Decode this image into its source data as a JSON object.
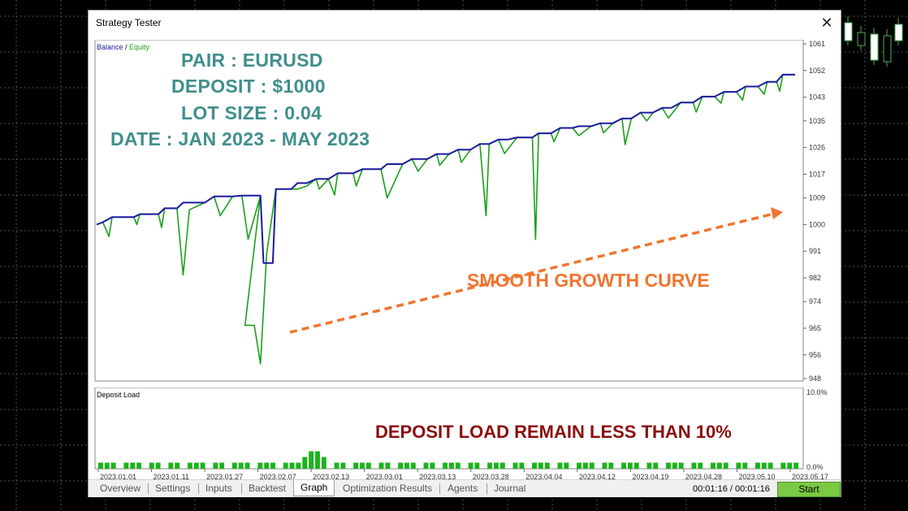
{
  "window": {
    "title": "Strategy Tester"
  },
  "main_chart": {
    "legend_balance": "Balance",
    "legend_sep": " / ",
    "legend_equity": "Equity",
    "y_ticks": [
      "1061",
      "1052",
      "1043",
      "1035",
      "1026",
      "1017",
      "1009",
      "1000",
      "991",
      "982",
      "974",
      "965",
      "956",
      "948"
    ]
  },
  "load_chart": {
    "label": "Deposit Load",
    "y_top": "10.0%",
    "y_bottom": "0.0%"
  },
  "x_ticks": [
    "2023.01.01",
    "2023.01.11",
    "2023.01.27",
    "2023.02.07",
    "2023.02.13",
    "2023.03.01",
    "2023.03.13",
    "2023.03.28",
    "2023.04.04",
    "2023.04.12",
    "2023.04.19",
    "2023.04.28",
    "2023.05.10",
    "2023.05.17"
  ],
  "annotations": {
    "pair": "PAIR : EURUSD",
    "deposit": "DEPOSIT : $1000",
    "lot": "LOT SIZE : 0.04",
    "date": "DATE : JAN 2023 - MAY 2023",
    "smooth": "SMOOTH GROWTH CURVE",
    "load": "DEPOSIT LOAD REMAIN LESS THAN 10%"
  },
  "tabs": [
    "Overview",
    "Settings",
    "Inputs",
    "Backtest",
    "Graph",
    "Optimization Results",
    "Agents",
    "Journal"
  ],
  "active_tab": "Graph",
  "timer": "00:01:16 / 00:01:16",
  "start_label": "Start",
  "colors": {
    "balance": "#1a1a9e",
    "equity": "#1aa01a",
    "load_bar": "#19b419",
    "arrow": "#f07530"
  },
  "chart_data": {
    "type": "line",
    "ylim": [
      948,
      1061
    ],
    "series": [
      {
        "name": "Balance",
        "points": [
          [
            0,
            1000
          ],
          [
            2,
            1000.8
          ],
          [
            5,
            1002.5
          ],
          [
            12,
            1002.5
          ],
          [
            14,
            1003.5
          ],
          [
            20,
            1003.5
          ],
          [
            22,
            1005.5
          ],
          [
            26,
            1005.5
          ],
          [
            28,
            1007.4
          ],
          [
            35,
            1007.4
          ],
          [
            38,
            1009.5
          ],
          [
            44,
            1009.5
          ],
          [
            47,
            1009.8
          ],
          [
            53,
            1009.8
          ],
          [
            54,
            987
          ],
          [
            57,
            987
          ],
          [
            58,
            1012
          ],
          [
            63,
            1012
          ],
          [
            65,
            1014
          ],
          [
            68,
            1014
          ],
          [
            71,
            1015.4
          ],
          [
            75,
            1015.4
          ],
          [
            78,
            1017.3
          ],
          [
            83,
            1017.3
          ],
          [
            86,
            1018.7
          ],
          [
            92,
            1018.7
          ],
          [
            94,
            1020.4
          ],
          [
            99,
            1020.4
          ],
          [
            102,
            1022.1
          ],
          [
            107,
            1022.1
          ],
          [
            110,
            1023.8
          ],
          [
            114,
            1023.8
          ],
          [
            117,
            1025.3
          ],
          [
            121,
            1025.3
          ],
          [
            124,
            1027.2
          ],
          [
            127,
            1027.2
          ],
          [
            130,
            1028.7
          ],
          [
            133,
            1028.7
          ],
          [
            136,
            1029.4
          ],
          [
            141,
            1029.4
          ],
          [
            143,
            1030.8
          ],
          [
            147,
            1030.8
          ],
          [
            150,
            1032.6
          ],
          [
            154,
            1032.6
          ],
          [
            156,
            1033.2
          ],
          [
            160,
            1033.2
          ],
          [
            163,
            1034.2
          ],
          [
            167,
            1034.2
          ],
          [
            170,
            1035.8
          ],
          [
            173,
            1035.8
          ],
          [
            176,
            1037.8
          ],
          [
            180,
            1037.8
          ],
          [
            183,
            1039.4
          ],
          [
            186,
            1039.4
          ],
          [
            189,
            1041.2
          ],
          [
            193,
            1041.2
          ],
          [
            196,
            1043.2
          ],
          [
            200,
            1043.2
          ],
          [
            203,
            1044.8
          ],
          [
            207,
            1044.8
          ],
          [
            210,
            1046.6
          ],
          [
            214,
            1046.6
          ],
          [
            217,
            1048.2
          ],
          [
            220,
            1048.2
          ],
          [
            222,
            1050.6
          ],
          [
            226,
            1050.6
          ]
        ]
      },
      {
        "name": "Equity",
        "points": [
          [
            0,
            1000
          ],
          [
            2,
            1000.8
          ],
          [
            4,
            996
          ],
          [
            5,
            1002.5
          ],
          [
            12,
            1002.5
          ],
          [
            13,
            1000
          ],
          [
            14,
            1003.5
          ],
          [
            20,
            1003.5
          ],
          [
            21,
            999
          ],
          [
            22,
            1005.5
          ],
          [
            26,
            1005.5
          ],
          [
            28,
            983
          ],
          [
            30,
            1005
          ],
          [
            35,
            1007.4
          ],
          [
            38,
            1009.5
          ],
          [
            40,
            1003
          ],
          [
            44,
            1009.5
          ],
          [
            47,
            1009.8
          ],
          [
            49,
            995
          ],
          [
            53,
            1009.8
          ],
          [
            48,
            966
          ],
          [
            51,
            966
          ],
          [
            53,
            953
          ],
          [
            55,
            990
          ],
          [
            58,
            1012
          ],
          [
            63,
            1012
          ],
          [
            65,
            1012
          ],
          [
            68,
            1013
          ],
          [
            71,
            1015.4
          ],
          [
            72,
            1012
          ],
          [
            75,
            1015.4
          ],
          [
            77,
            1010
          ],
          [
            78,
            1017.3
          ],
          [
            83,
            1017.3
          ],
          [
            84,
            1013
          ],
          [
            86,
            1018.7
          ],
          [
            92,
            1018.7
          ],
          [
            94,
            1009
          ],
          [
            99,
            1020.4
          ],
          [
            102,
            1022.1
          ],
          [
            104,
            1018
          ],
          [
            107,
            1022.1
          ],
          [
            110,
            1023.8
          ],
          [
            111,
            1020
          ],
          [
            114,
            1023.8
          ],
          [
            117,
            1025.3
          ],
          [
            118,
            1021
          ],
          [
            121,
            1025.3
          ],
          [
            124,
            1027.2
          ],
          [
            126,
            1003
          ],
          [
            127,
            1027.2
          ],
          [
            130,
            1028.7
          ],
          [
            132,
            1024
          ],
          [
            136,
            1029.4
          ],
          [
            141,
            1029.4
          ],
          [
            142,
            995
          ],
          [
            143,
            1030.8
          ],
          [
            147,
            1030.8
          ],
          [
            148,
            1028
          ],
          [
            150,
            1032.6
          ],
          [
            154,
            1032.6
          ],
          [
            156,
            1030
          ],
          [
            160,
            1033.2
          ],
          [
            163,
            1034.2
          ],
          [
            164,
            1031
          ],
          [
            167,
            1034.2
          ],
          [
            170,
            1035.8
          ],
          [
            171,
            1027
          ],
          [
            173,
            1035.8
          ],
          [
            176,
            1037.8
          ],
          [
            178,
            1035
          ],
          [
            180,
            1037.8
          ],
          [
            183,
            1039.4
          ],
          [
            185,
            1036
          ],
          [
            189,
            1041.2
          ],
          [
            193,
            1041.2
          ],
          [
            194,
            1038
          ],
          [
            196,
            1043.2
          ],
          [
            200,
            1043.2
          ],
          [
            202,
            1041
          ],
          [
            203,
            1044.8
          ],
          [
            207,
            1044.8
          ],
          [
            209,
            1042
          ],
          [
            210,
            1046.6
          ],
          [
            214,
            1046.6
          ],
          [
            216,
            1044
          ],
          [
            217,
            1048.2
          ],
          [
            220,
            1048.2
          ],
          [
            221,
            1045
          ],
          [
            222,
            1050.6
          ],
          [
            226,
            1050.6
          ]
        ]
      }
    ],
    "deposit_load_bars": [
      1,
      1,
      1,
      0,
      1,
      1,
      1,
      0,
      1,
      1,
      0,
      1,
      1,
      0,
      1,
      1,
      1,
      0,
      1,
      1,
      0,
      1,
      1,
      1,
      0,
      1,
      1,
      1,
      0,
      1,
      1,
      1,
      2,
      3,
      3,
      2,
      0,
      1,
      1,
      0,
      1,
      1,
      1,
      0,
      1,
      1,
      0,
      1,
      1,
      1,
      0,
      1,
      1,
      0,
      1,
      1,
      1,
      0,
      1,
      1,
      0,
      1,
      1,
      1,
      0,
      1,
      1,
      0,
      1,
      1,
      1,
      0,
      1,
      1,
      0,
      1,
      1,
      1,
      0,
      1,
      1,
      0,
      1,
      1,
      1,
      0,
      1,
      1,
      0,
      1,
      1,
      1,
      0,
      1,
      1,
      0,
      1,
      1,
      1,
      0,
      1,
      1,
      0,
      1,
      1,
      1,
      0,
      1,
      1,
      1
    ]
  }
}
